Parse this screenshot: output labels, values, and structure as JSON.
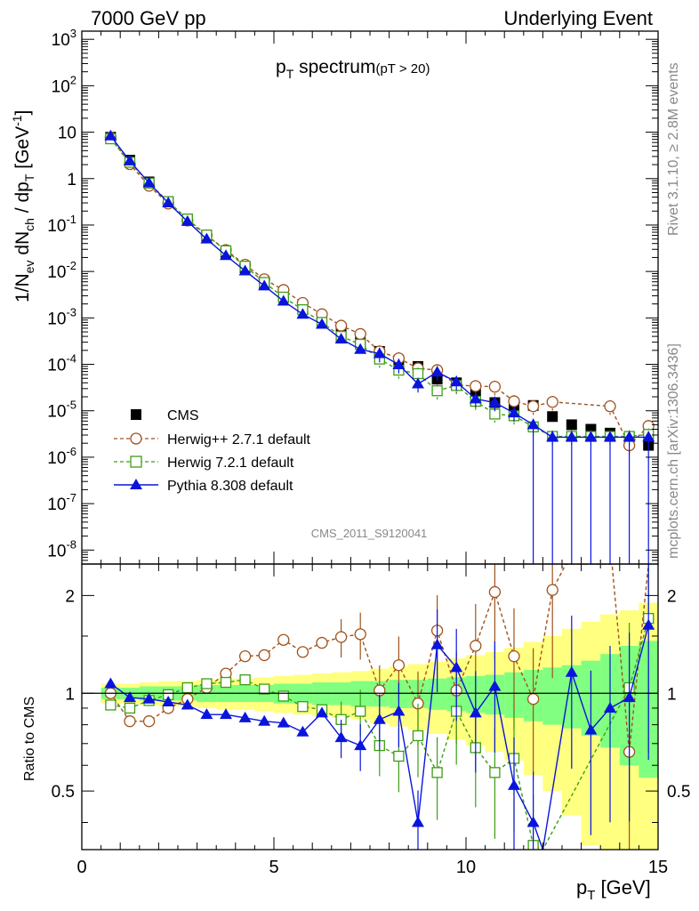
{
  "header": {
    "left": "7000 GeV pp",
    "right": "Underlying Event"
  },
  "side_labels": {
    "rivet": "Rivet 3.1.10, ≥ 2.8M events",
    "mcplots": "mcplots.cern.ch [arXiv:1306.3436]"
  },
  "watermark": "CMS_2011_S9120041",
  "title": {
    "main": "p",
    "sub": "T",
    "rest": " spectrum",
    "cut": "(pT > 20)"
  },
  "ylabel_top": "1/N_ev dN_ch / dp_T [GeV^-1]",
  "ylabel_bottom": "Ratio to CMS",
  "xlabel": "p_T [GeV]",
  "colors": {
    "cms": "#000000",
    "herwigpp": "#a0521c",
    "herwig7": "#3c9e14",
    "pythia": "#0a14dc",
    "band_outer": "#ffff80",
    "band_inner": "#80ff80"
  },
  "chart_data": [
    {
      "type": "scatter",
      "title": "pT spectrum (pT > 20)",
      "xlabel": "pT [GeV]",
      "ylabel": "1/Nev dNch / dpT [GeV^-1]",
      "yscale": "log",
      "xlim": [
        0,
        15
      ],
      "ylim": [
        5e-09,
        1500
      ],
      "y_ticks": [
        "10^-8",
        "10^-7",
        "10^-6",
        "10^-5",
        "10^-4",
        "10^-3",
        "10^-2",
        "10^-1",
        "1",
        "10",
        "10^2",
        "10^3"
      ],
      "x_ticks": [
        0,
        5,
        10,
        15
      ],
      "legend_position": "bottom-left",
      "series": [
        {
          "name": "CMS",
          "style": "square-filled",
          "x": [
            0.75,
            1.25,
            1.75,
            2.25,
            2.75,
            3.25,
            3.75,
            4.25,
            4.75,
            5.25,
            5.75,
            6.25,
            6.75,
            7.25,
            7.75,
            8.25,
            8.75,
            9.25,
            9.75,
            10.25,
            10.75,
            11.25,
            11.75,
            12.25,
            12.75,
            13.25,
            13.75,
            14.25,
            14.75
          ],
          "y": [
            7.8,
            2.5,
            0.85,
            0.32,
            0.13,
            0.058,
            0.026,
            0.012,
            0.0054,
            0.0028,
            0.0016,
            0.00085,
            0.00048,
            0.0003,
            0.00019,
            0.00012,
            9e-05,
            4.8e-05,
            4e-05,
            2.3e-05,
            1.5e-05,
            1.2e-05,
            1.3e-05,
            7.5e-06,
            5e-06,
            4e-06,
            3.3e-06,
            2.8e-06,
            1.8e-06
          ]
        },
        {
          "name": "Herwig++ 2.7.1 default",
          "style": "circle-open-dashed",
          "x": [
            0.75,
            1.25,
            1.75,
            2.25,
            2.75,
            3.25,
            3.75,
            4.25,
            4.75,
            5.25,
            5.75,
            6.25,
            6.75,
            7.25,
            7.75,
            8.25,
            8.75,
            9.25,
            9.75,
            10.25,
            10.75,
            11.25,
            11.75,
            12.25,
            13.75,
            14.25,
            14.75
          ],
          "y": [
            7.7,
            2.05,
            0.7,
            0.29,
            0.125,
            0.06,
            0.029,
            0.014,
            0.0068,
            0.004,
            0.0021,
            0.0012,
            0.00068,
            0.00045,
            0.00019,
            0.000135,
            8.2e-05,
            7.5e-05,
            3.6e-05,
            3.4e-05,
            3.3e-05,
            1.6e-05,
            1.25e-05,
            1.55e-05,
            1.25e-05,
            1.8e-06,
            4.7e-06
          ]
        },
        {
          "name": "Herwig 7.2.1 default",
          "style": "square-open-dashed",
          "x": [
            0.75,
            1.25,
            1.75,
            2.25,
            2.75,
            3.25,
            3.75,
            4.25,
            4.75,
            5.25,
            5.75,
            6.25,
            6.75,
            7.25,
            7.75,
            8.25,
            8.75,
            9.25,
            9.75,
            10.25,
            10.75,
            11.25,
            11.75,
            12.25,
            12.75,
            13.25,
            13.75,
            14.25,
            14.75
          ],
          "y": [
            7.2,
            2.25,
            0.8,
            0.32,
            0.135,
            0.061,
            0.028,
            0.013,
            0.0058,
            0.0028,
            0.0015,
            0.0008,
            0.0004,
            0.00027,
            0.00013,
            7.5e-05,
            6.3e-05,
            2.7e-05,
            3.5e-05,
            1.6e-05,
            8.5e-06,
            7.8e-06,
            4.5e-06,
            2.8e-06,
            2.8e-06,
            2.8e-06,
            2.8e-06,
            2.8e-06,
            3.1e-06
          ]
        },
        {
          "name": "Pythia 8.308 default",
          "style": "triangle-filled-solid",
          "x": [
            0.75,
            1.25,
            1.75,
            2.25,
            2.75,
            3.25,
            3.75,
            4.25,
            4.75,
            5.25,
            5.75,
            6.25,
            6.75,
            7.25,
            7.75,
            8.25,
            8.75,
            9.25,
            9.75,
            10.25,
            10.75,
            11.25,
            11.75,
            12.25,
            12.75,
            13.25,
            13.75,
            14.25,
            14.75
          ],
          "y": [
            8.3,
            2.4,
            0.81,
            0.3,
            0.12,
            0.05,
            0.022,
            0.0103,
            0.0049,
            0.0023,
            0.0012,
            0.00073,
            0.00035,
            0.00021,
            0.00017,
            9.8e-05,
            3.8e-05,
            6.8e-05,
            4.2e-05,
            1.8e-05,
            1.5e-05,
            9e-06,
            5e-06,
            2.7e-06,
            2.7e-06,
            2.7e-06,
            2.7e-06,
            2.7e-06,
            2.7e-06
          ]
        }
      ]
    },
    {
      "type": "line",
      "ylabel": "Ratio to CMS",
      "xlabel": "pT [GeV]",
      "xlim": [
        0,
        15
      ],
      "ylim": [
        0.33,
        2.5
      ],
      "y_ticks": [
        0.5,
        1,
        2
      ],
      "x_ticks": [
        0,
        5,
        10,
        15
      ],
      "band_x": [
        0.5,
        1.0,
        1.5,
        2.0,
        2.5,
        3.0,
        3.5,
        4.0,
        4.5,
        5.0,
        5.5,
        6.0,
        6.5,
        7.0,
        7.5,
        8.0,
        8.5,
        9.0,
        9.5,
        10.0,
        10.5,
        11.0,
        11.5,
        12.0,
        12.5,
        13.0,
        13.5,
        14.0,
        14.5,
        15.0
      ],
      "band_inner": [
        0.04,
        0.04,
        0.05,
        0.05,
        0.05,
        0.06,
        0.06,
        0.06,
        0.06,
        0.07,
        0.07,
        0.08,
        0.08,
        0.09,
        0.09,
        0.1,
        0.1,
        0.11,
        0.12,
        0.13,
        0.14,
        0.16,
        0.18,
        0.2,
        0.22,
        0.26,
        0.32,
        0.4,
        0.45
      ],
      "band_outer": [
        0.07,
        0.07,
        0.08,
        0.09,
        0.09,
        0.1,
        0.11,
        0.11,
        0.12,
        0.13,
        0.14,
        0.15,
        0.16,
        0.17,
        0.19,
        0.21,
        0.23,
        0.25,
        0.28,
        0.31,
        0.34,
        0.38,
        0.44,
        0.5,
        0.58,
        0.66,
        0.75,
        0.8,
        0.9
      ],
      "series": [
        {
          "name": "Herwig++ 2.7.1 default",
          "x": [
            0.75,
            1.25,
            1.75,
            2.25,
            2.75,
            3.25,
            3.75,
            4.25,
            4.75,
            5.25,
            5.75,
            6.25,
            6.75,
            7.25,
            7.75,
            8.25,
            8.75,
            9.25,
            9.75,
            10.25,
            10.75,
            11.25,
            11.75,
            12.25,
            12.6,
            13.8,
            14.25,
            14.75
          ],
          "y": [
            1.0,
            0.82,
            0.82,
            0.9,
            0.96,
            1.04,
            1.15,
            1.3,
            1.31,
            1.46,
            1.34,
            1.43,
            1.49,
            1.52,
            1.02,
            1.22,
            0.93,
            1.56,
            1.02,
            1.4,
            2.05,
            1.3,
            0.96,
            2.08,
            2.5,
            2.5,
            0.66,
            2.5
          ]
        },
        {
          "name": "Herwig 7.2.1 default",
          "x": [
            0.75,
            1.25,
            1.75,
            2.25,
            2.75,
            3.25,
            3.75,
            4.25,
            4.75,
            5.25,
            5.75,
            6.25,
            6.75,
            7.25,
            7.75,
            8.25,
            8.75,
            9.25,
            9.75,
            10.25,
            10.75,
            11.25,
            11.75,
            12.0,
            14.25,
            14.75
          ],
          "y": [
            0.92,
            0.9,
            0.95,
            0.99,
            1.04,
            1.07,
            1.08,
            1.1,
            1.03,
            0.98,
            0.91,
            0.89,
            0.83,
            0.88,
            0.69,
            0.64,
            0.74,
            0.57,
            0.88,
            0.68,
            0.57,
            0.63,
            0.34,
            0.33,
            1.04,
            1.7
          ]
        },
        {
          "name": "Pythia 8.308 default",
          "x": [
            0.75,
            1.25,
            1.75,
            2.25,
            2.75,
            3.25,
            3.75,
            4.25,
            4.75,
            5.25,
            5.75,
            6.25,
            6.75,
            7.25,
            7.75,
            8.25,
            8.75,
            9.25,
            9.75,
            10.25,
            10.75,
            11.25,
            11.75,
            12.0,
            12.75,
            13.25,
            13.75,
            14.25,
            14.75
          ],
          "y": [
            1.07,
            0.97,
            0.96,
            0.94,
            0.92,
            0.86,
            0.86,
            0.84,
            0.82,
            0.81,
            0.76,
            0.87,
            0.73,
            0.69,
            0.83,
            0.88,
            0.4,
            1.41,
            1.2,
            0.87,
            1.05,
            0.52,
            0.4,
            0.33,
            1.16,
            0.77,
            0.9,
            0.97,
            1.62
          ]
        }
      ]
    }
  ]
}
